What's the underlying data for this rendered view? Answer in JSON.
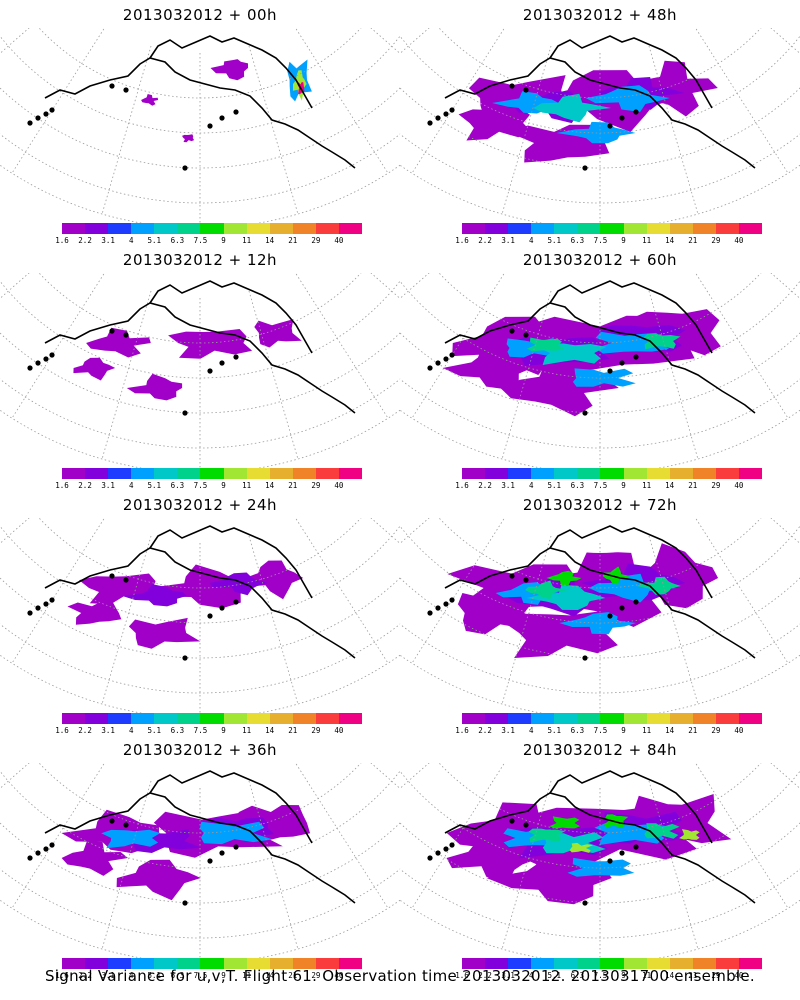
{
  "panels": [
    {
      "title": "2013032012 + 00h",
      "level": 0
    },
    {
      "title": "2013032012 + 48h",
      "level": 4
    },
    {
      "title": "2013032012 + 12h",
      "level": 1
    },
    {
      "title": "2013032012 + 60h",
      "level": 5
    },
    {
      "title": "2013032012 + 24h",
      "level": 2
    },
    {
      "title": "2013032012 + 72h",
      "level": 6
    },
    {
      "title": "2013032012 + 36h",
      "level": 3
    },
    {
      "title": "2013032012 + 84h",
      "level": 7
    }
  ],
  "colorbar": {
    "colors": [
      "#a000c8",
      "#8200dc",
      "#1e3cff",
      "#00a0ff",
      "#00c8c8",
      "#00d28c",
      "#00dc00",
      "#a0e632",
      "#e6dc32",
      "#e6af2d",
      "#f08228",
      "#fa3c3c",
      "#f00082"
    ],
    "labels": [
      "1.6",
      "2.2",
      "3.1",
      "4",
      "5.1",
      "6.3",
      "7.5",
      "9",
      "11",
      "14",
      "21",
      "29",
      "40"
    ]
  },
  "footer": "Signal Variance for u,v,T. Flight 61. Observation time 2013032012. 2013031700 ensemble."
}
